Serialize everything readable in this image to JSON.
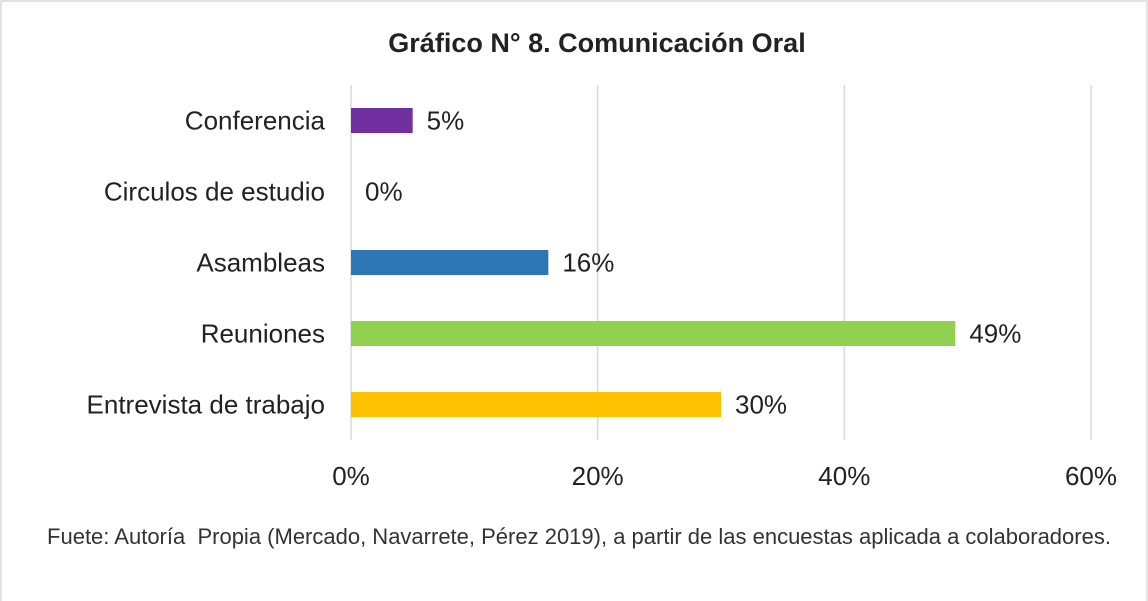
{
  "chart_data": {
    "type": "hbar",
    "title": "Gráfico N° 8. Comunicación Oral",
    "categories": [
      "Conferencia",
      "Circulos de estudio",
      "Asambleas",
      "Reuniones",
      "Entrevista de trabajo"
    ],
    "values": [
      5,
      0,
      16,
      49,
      30
    ],
    "value_labels": [
      "5%",
      "0%",
      "16%",
      "49%",
      "30%"
    ],
    "colors": [
      "#7030a0",
      "#a5a5a5",
      "#2e75b6",
      "#92d050",
      "#ffc000"
    ],
    "xlim": [
      0,
      60
    ],
    "xticks": [
      {
        "value": 0,
        "label": "0%"
      },
      {
        "value": 20,
        "label": "20%"
      },
      {
        "value": 40,
        "label": "40%"
      },
      {
        "value": 60,
        "label": "60%"
      }
    ],
    "grid": true,
    "note": "Fuete: Autoría  Propia (Mercado, Navarrete, Pérez 2019), a partir de las encuestas aplicada a colaboradores."
  }
}
